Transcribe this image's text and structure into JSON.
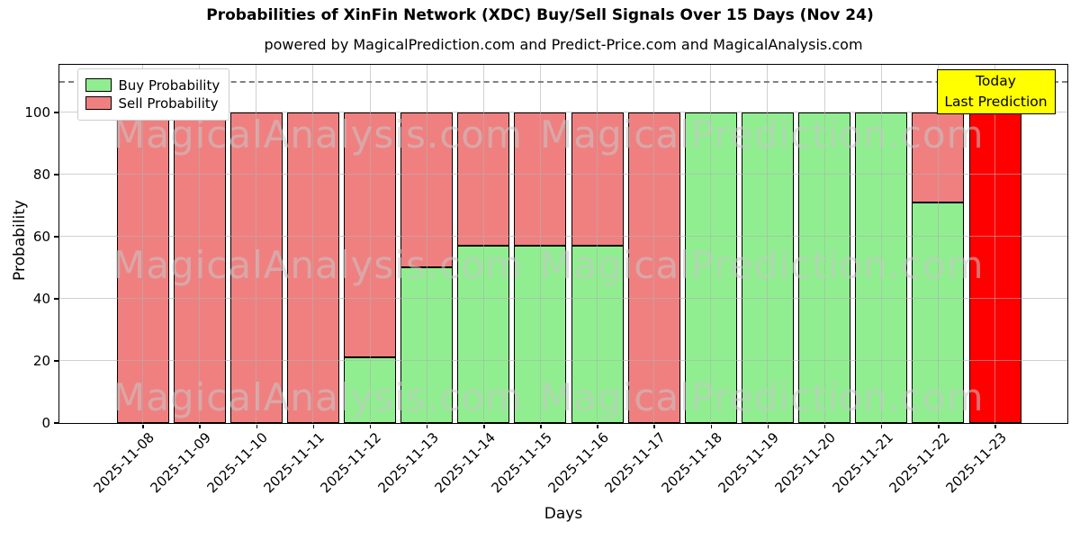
{
  "title": "Probabilities of XinFin Network (XDC) Buy/Sell Signals Over 15 Days (Nov 24)",
  "subtitle": "powered by MagicalPrediction.com and Predict-Price.com and MagicalAnalysis.com",
  "watermarks": {
    "left": "MagicalAnalysis.com",
    "right": "MagicalPrediction.com"
  },
  "annotation": {
    "line1": "Today",
    "line2": "Last Prediction",
    "bg_color": "#FFFF00"
  },
  "legend": {
    "items": [
      {
        "label": "Buy Probability",
        "color": "#90EE90"
      },
      {
        "label": "Sell Probability",
        "color": "#F08080"
      }
    ]
  },
  "colors": {
    "buy": "#90EE90",
    "sell": "#F08080",
    "today_bar": "#FF0000",
    "dashed_line": "#808080",
    "grid": "#b0b0b0",
    "bar_edge": "#000000",
    "annotation_bg": "#FFFF00"
  },
  "chart_data": {
    "type": "bar",
    "stacked": true,
    "title": "Probabilities of XinFin Network (XDC) Buy/Sell Signals Over 15 Days (Nov 24)",
    "subtitle": "powered by MagicalPrediction.com and Predict-Price.com and MagicalAnalysis.com",
    "xlabel": "Days",
    "ylabel": "Probability",
    "categories": [
      "2025-11-08",
      "2025-11-09",
      "2025-11-10",
      "2025-11-11",
      "2025-11-12",
      "2025-11-13",
      "2025-11-14",
      "2025-11-15",
      "2025-11-16",
      "2025-11-17",
      "2025-11-18",
      "2025-11-19",
      "2025-11-20",
      "2025-11-21",
      "2025-11-22",
      "2025-11-23"
    ],
    "series": [
      {
        "name": "Buy Probability",
        "color": "#90EE90",
        "values": [
          0,
          0,
          0,
          0,
          21,
          50,
          57,
          57,
          57,
          0,
          100,
          100,
          100,
          100,
          71,
          0
        ]
      },
      {
        "name": "Sell Probability",
        "color": "#F08080",
        "values": [
          100,
          100,
          100,
          100,
          79,
          50,
          43,
          43,
          43,
          100,
          0,
          0,
          0,
          0,
          29,
          100
        ]
      }
    ],
    "today_index": 15,
    "today_color": "#FF0000",
    "yticks": [
      0,
      20,
      40,
      60,
      80,
      100
    ],
    "ylim": [
      0,
      115.4
    ],
    "dashed_line_y": 110,
    "grid": true,
    "legend_position": "upper left"
  }
}
